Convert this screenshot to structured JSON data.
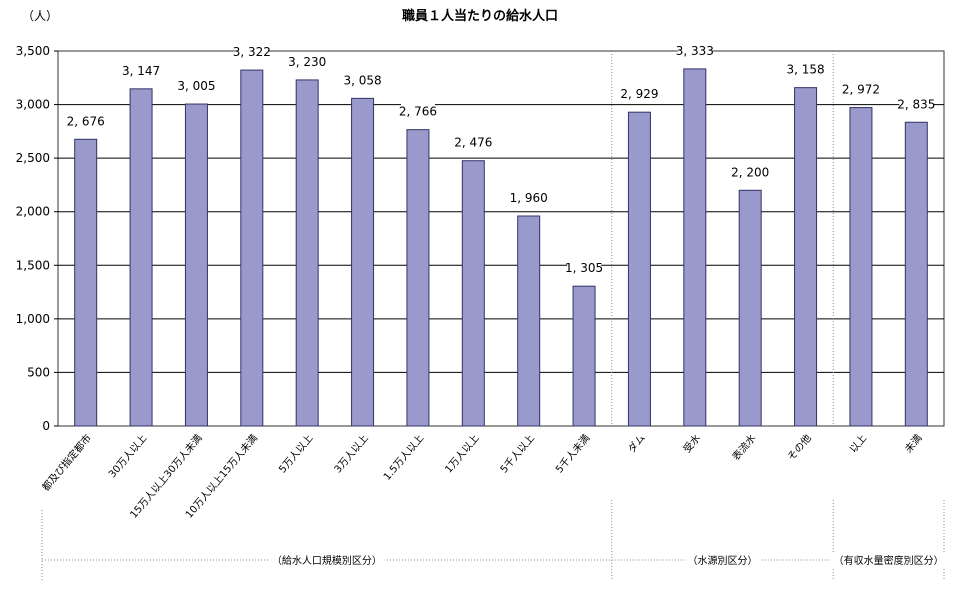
{
  "chart_data": {
    "type": "bar",
    "title": "職員１人当たりの給水人口",
    "ylabel": "（人）",
    "xlabel": "",
    "ylim": [
      0,
      3500
    ],
    "yticks": [
      "0",
      "500",
      "1,000",
      "1,500",
      "2,000",
      "2,500",
      "3,000",
      "3,500"
    ],
    "grid": true,
    "legend": "none",
    "bar_color": "#9999cc",
    "bar_border": "#333366",
    "categories": [
      "都及び指定都市",
      "30万人以上",
      "15万人以上30万人未満",
      "10万人以上15万人未満",
      "5万人以上",
      "3万人以上",
      "1.5万人以上",
      "1万人以上",
      "5千人以上",
      "5千人未満",
      "ダム",
      "受水",
      "表流水",
      "その他",
      "以上",
      "未満"
    ],
    "values": [
      2676,
      3147,
      3005,
      3322,
      3230,
      3058,
      2766,
      2476,
      1960,
      1305,
      2929,
      3333,
      2200,
      3158,
      2972,
      2835
    ],
    "value_labels": [
      "2, 676",
      "3, 147",
      "3, 005",
      "3, 322",
      "3, 230",
      "3, 058",
      "2, 766",
      "2, 476",
      "1, 960",
      "1, 305",
      "2, 929",
      "3, 333",
      "2, 200",
      "3, 158",
      "2, 972",
      "2, 835"
    ],
    "groups": [
      {
        "label": "（給水人口規模別区分）",
        "first": 0,
        "last": 9
      },
      {
        "label": "（水源別区分）",
        "first": 10,
        "last": 13
      },
      {
        "label": "（有収水量密度別区分）",
        "first": 14,
        "last": 15
      }
    ]
  }
}
